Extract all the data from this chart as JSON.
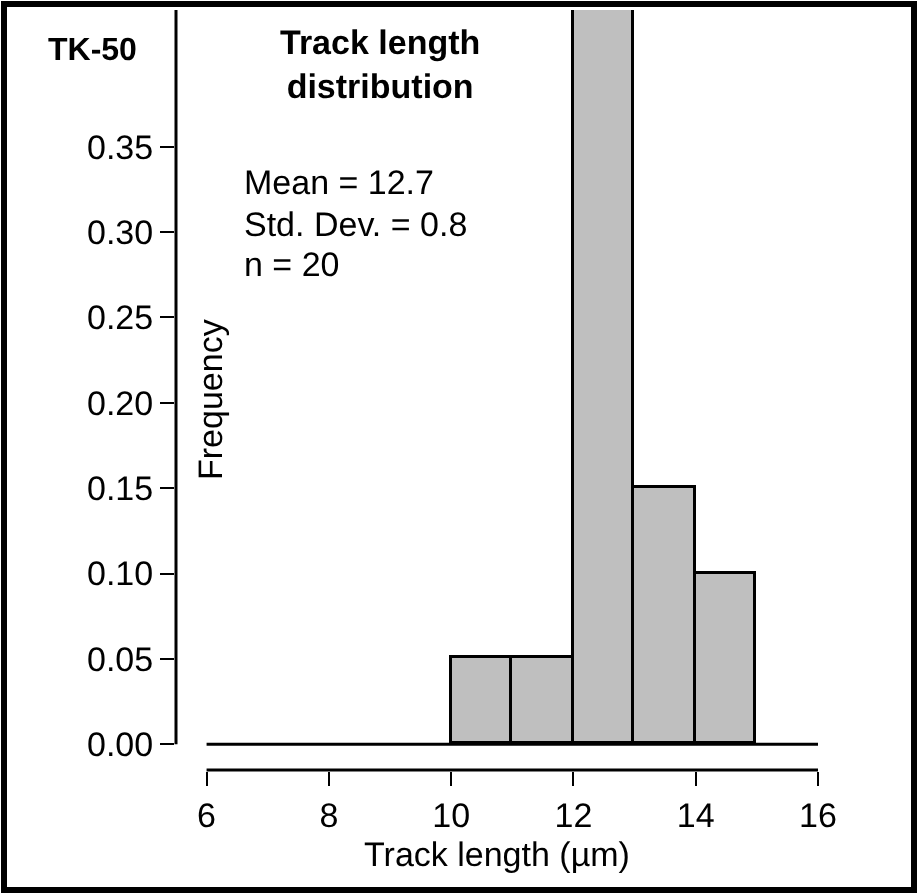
{
  "chart_data": {
    "type": "histogram",
    "title": "Track length distribution",
    "xlabel": "Track length (µm)",
    "ylabel": "Frequency",
    "annotations": [
      "TK-50",
      "Mean = 12.7",
      "Std. Dev. = 0.8",
      "n = 20"
    ],
    "bins": [
      10,
      11,
      12,
      13,
      14,
      15
    ],
    "values": [
      0.05,
      0.05,
      0.43,
      0.15,
      0.1
    ],
    "color": "#bfbfbf",
    "xlim": [
      6,
      16
    ],
    "ylim": [
      0,
      0.43
    ],
    "xticks": [
      6,
      8,
      10,
      12,
      14,
      16
    ],
    "yticks": [
      {
        "value": 0,
        "label": "0.00"
      },
      {
        "value": 0.05,
        "label": "0.05"
      },
      {
        "value": 0.1,
        "label": "0.10"
      },
      {
        "value": 0.15,
        "label": "0.15"
      },
      {
        "value": 0.2,
        "label": "0.20"
      },
      {
        "value": 0.25,
        "label": "0.25"
      },
      {
        "value": 0.3,
        "label": "0.30"
      },
      {
        "value": 0.35,
        "label": "0.35"
      }
    ],
    "line_style": "solid"
  }
}
